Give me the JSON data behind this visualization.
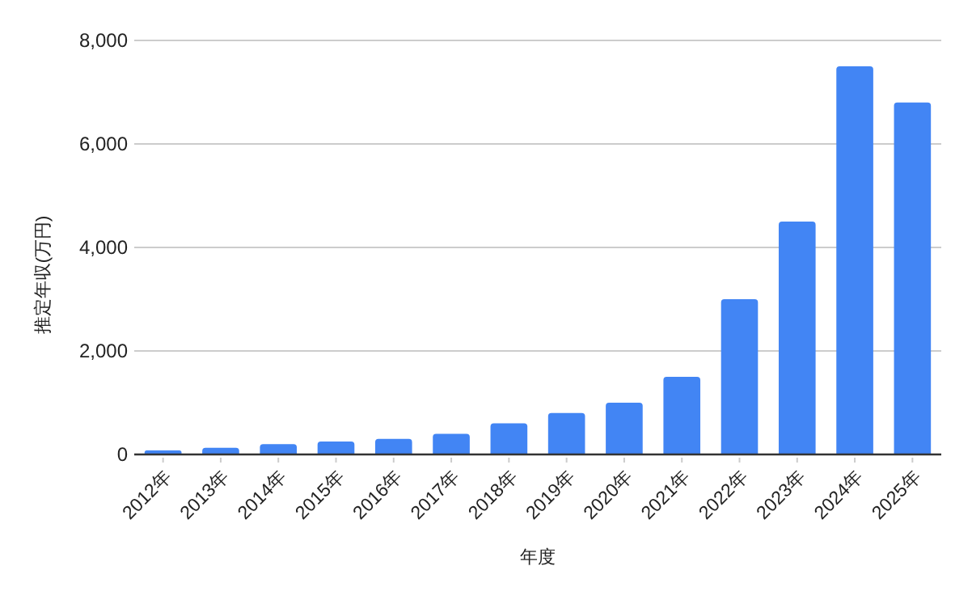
{
  "chart_data": {
    "type": "bar",
    "xlabel": "年度",
    "ylabel": "推定年収(万円)",
    "categories": [
      "2012年",
      "2013年",
      "2014年",
      "2015年",
      "2016年",
      "2017年",
      "2018年",
      "2019年",
      "2020年",
      "2021年",
      "2022年",
      "2023年",
      "2024年",
      "2025年"
    ],
    "values": [
      80,
      130,
      200,
      250,
      300,
      400,
      600,
      800,
      1000,
      1500,
      3000,
      4500,
      7500,
      6800
    ],
    "color": "#4285f4",
    "ylim": [
      0,
      8000
    ],
    "yticks": [
      0,
      {
        "value": 2000,
        "label": "2,000"
      },
      {
        "value": 4000,
        "label": "4,000"
      },
      {
        "value": 6000,
        "label": "6,000"
      },
      {
        "value": 8000,
        "label": "8,000"
      }
    ],
    "grid": "y"
  }
}
